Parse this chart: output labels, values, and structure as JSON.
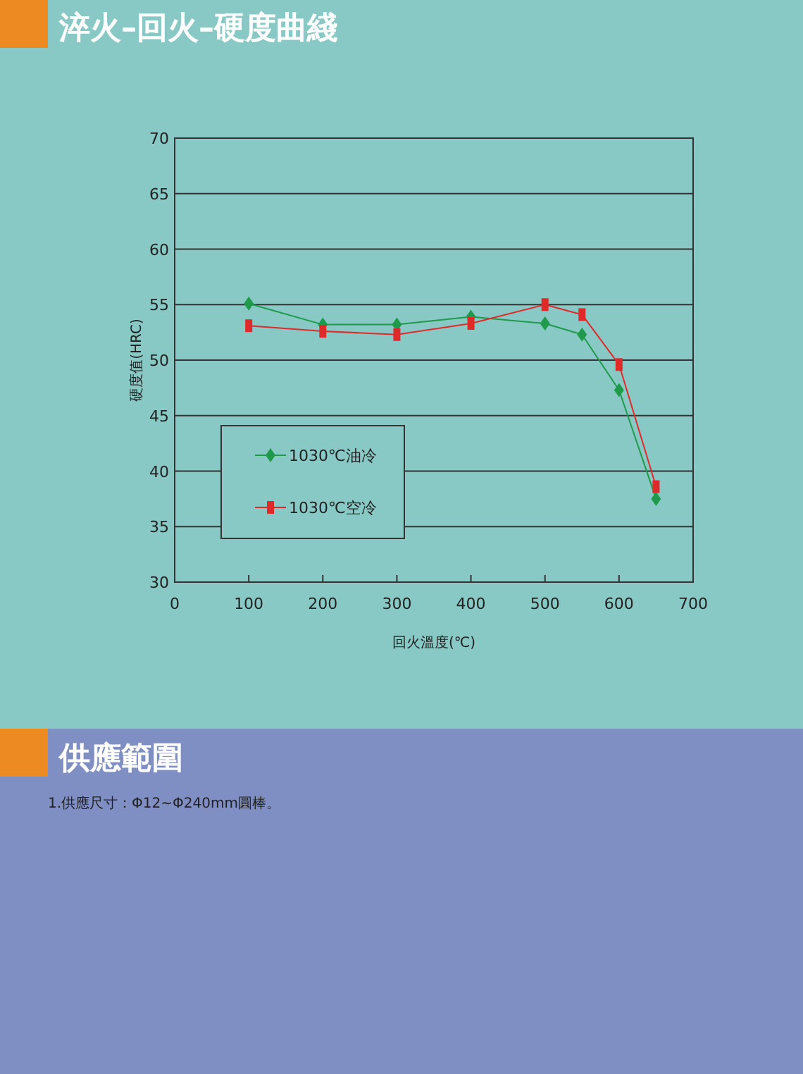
{
  "chart_data": {
    "type": "line",
    "title": "淬火–回火–硬度曲綫",
    "xlabel": "回火溫度(℃)",
    "ylabel": "硬度值(HRC)",
    "x": [
      100,
      200,
      300,
      400,
      500,
      550,
      600,
      650
    ],
    "series": [
      {
        "name": "1030℃油冷",
        "color": "#1e9a4a",
        "marker": "diamond",
        "values": [
          55.1,
          53.2,
          53.2,
          53.9,
          53.3,
          52.3,
          47.3,
          37.5
        ]
      },
      {
        "name": "1030℃空冷",
        "color": "#e02a2a",
        "marker": "square",
        "values": [
          53.1,
          52.6,
          52.3,
          53.3,
          55.0,
          54.1,
          49.6,
          38.6
        ]
      }
    ],
    "xlim": [
      0,
      700
    ],
    "xticks": [
      0,
      100,
      200,
      300,
      400,
      500,
      600,
      700
    ],
    "ylim": [
      30,
      70
    ],
    "yticks": [
      30,
      35,
      40,
      45,
      50,
      55,
      60,
      65,
      70
    ],
    "grid": "y",
    "legend": "left",
    "line_style": "solid",
    "annotations": [
      "供應範圍",
      "1.供應尺寸：Φ12~Φ240mm圓棒。"
    ]
  }
}
